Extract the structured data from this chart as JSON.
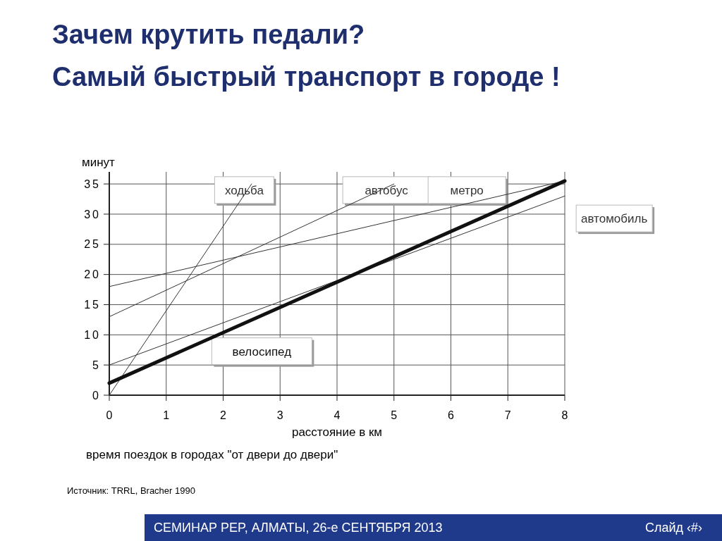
{
  "chart_data": {
    "type": "line",
    "title": "Зачем крутить педали?",
    "subtitle": "Самый быстрый транспорт в городе !",
    "xlabel": "расстояние в км",
    "ylabel": "минут",
    "series": [
      {
        "name": "ходьба",
        "color": "#333333",
        "x": [
          0,
          2.5
        ],
        "values": [
          0,
          35
        ]
      },
      {
        "name": "автобус",
        "color": "#333333",
        "x": [
          0,
          5
        ],
        "values": [
          13,
          35
        ]
      },
      {
        "name": "метро",
        "color": "#333333",
        "x": [
          0,
          8
        ],
        "values": [
          18,
          35.5
        ]
      },
      {
        "name": "автомобиль",
        "color": "#333333",
        "x": [
          0,
          8
        ],
        "values": [
          5,
          33
        ]
      },
      {
        "name": "велосипед",
        "color": "#111111",
        "x": [
          0,
          8
        ],
        "values": [
          2,
          35.5
        ]
      }
    ],
    "xlim": [
      0,
      8
    ],
    "xticks": [
      0,
      1,
      2,
      3,
      4,
      5,
      6,
      7,
      8
    ],
    "ylim": [
      0,
      37
    ],
    "yticks": [
      0,
      5,
      10,
      15,
      20,
      25,
      30,
      35
    ],
    "grid": true,
    "legend": false,
    "marker": "none",
    "line_style": "solid",
    "annotations": [
      "время поездок в городах \"от двери до двери\"",
      "Источник: TRRL, Bracher 1990",
      "СЕМИНАР PEP, АЛМАТЫ, 26-е СЕНТЯБРЯ 2013",
      "Слайд ‹#›"
    ]
  }
}
